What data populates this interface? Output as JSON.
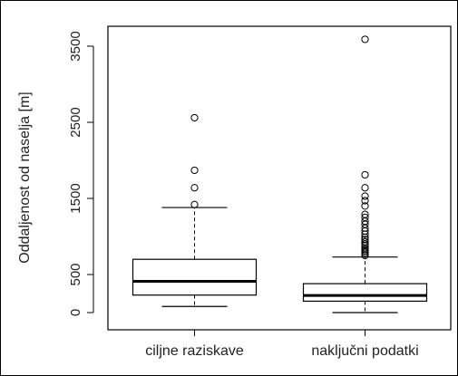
{
  "chart_data": {
    "type": "boxplot",
    "title": "",
    "xlabel": "",
    "ylabel": "Oddaljenost od naselja [m]",
    "ylim": [
      -50,
      3700
    ],
    "yticks": [
      0,
      500,
      1500,
      2500,
      3500
    ],
    "grid": false,
    "categories": [
      "ciljne raziskave",
      "naključni podatki"
    ],
    "series": [
      {
        "name": "ciljne raziskave",
        "whisker_low": 80,
        "q1": 230,
        "median": 410,
        "q3": 700,
        "whisker_high": 1380,
        "outliers": [
          1420,
          1640,
          1870,
          2560
        ]
      },
      {
        "name": "naključni podatki",
        "whisker_low": 0,
        "q1": 150,
        "median": 225,
        "q3": 380,
        "whisker_high": 730,
        "outliers": [
          750,
          770,
          790,
          810,
          830,
          850,
          880,
          900,
          930,
          960,
          990,
          1030,
          1070,
          1110,
          1160,
          1200,
          1250,
          1290,
          1400,
          1470,
          1530,
          1640,
          1810,
          3590
        ]
      }
    ]
  }
}
